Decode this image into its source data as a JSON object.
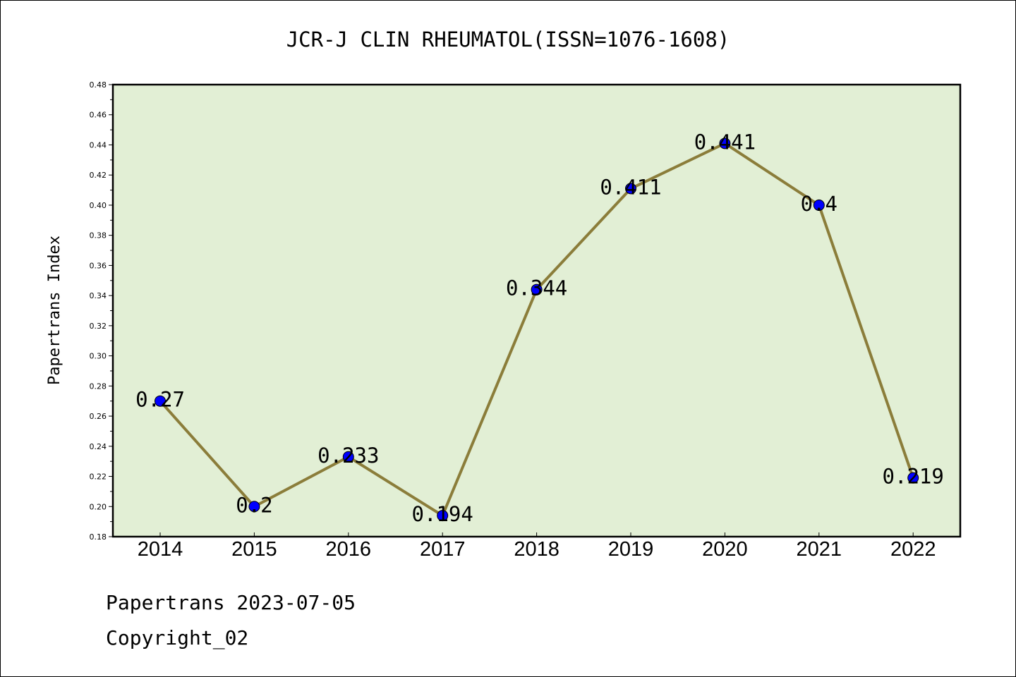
{
  "colors": {
    "plot_background": "#e2efd5",
    "line": "#8b7d3a",
    "marker": "#0000ff"
  },
  "chart_data": {
    "type": "line",
    "title": "JCR-J CLIN RHEUMATOL(ISSN=1076-1608)",
    "xlabel": "",
    "ylabel": "Papertrans Index",
    "categories": [
      "2014",
      "2015",
      "2016",
      "2017",
      "2018",
      "2019",
      "2020",
      "2021",
      "2022"
    ],
    "values": [
      0.27,
      0.2,
      0.233,
      0.194,
      0.344,
      0.411,
      0.441,
      0.4,
      0.219
    ],
    "data_labels": [
      "0.27",
      "0.2",
      "0.233",
      "0.194",
      "0.344",
      "0.411",
      "0.441",
      "0.4",
      "0.219"
    ],
    "ylim": [
      0.18,
      0.48
    ],
    "yticks": [
      "0.18",
      "0.20",
      "0.22",
      "0.24",
      "0.26",
      "0.28",
      "0.30",
      "0.32",
      "0.34",
      "0.36",
      "0.38",
      "0.40",
      "0.42",
      "0.44",
      "0.46",
      "0.48"
    ],
    "grid": false,
    "legend": "none"
  },
  "footer": {
    "date_line": "Papertrans 2023-07-05",
    "copyright_line": "Copyright_02"
  }
}
